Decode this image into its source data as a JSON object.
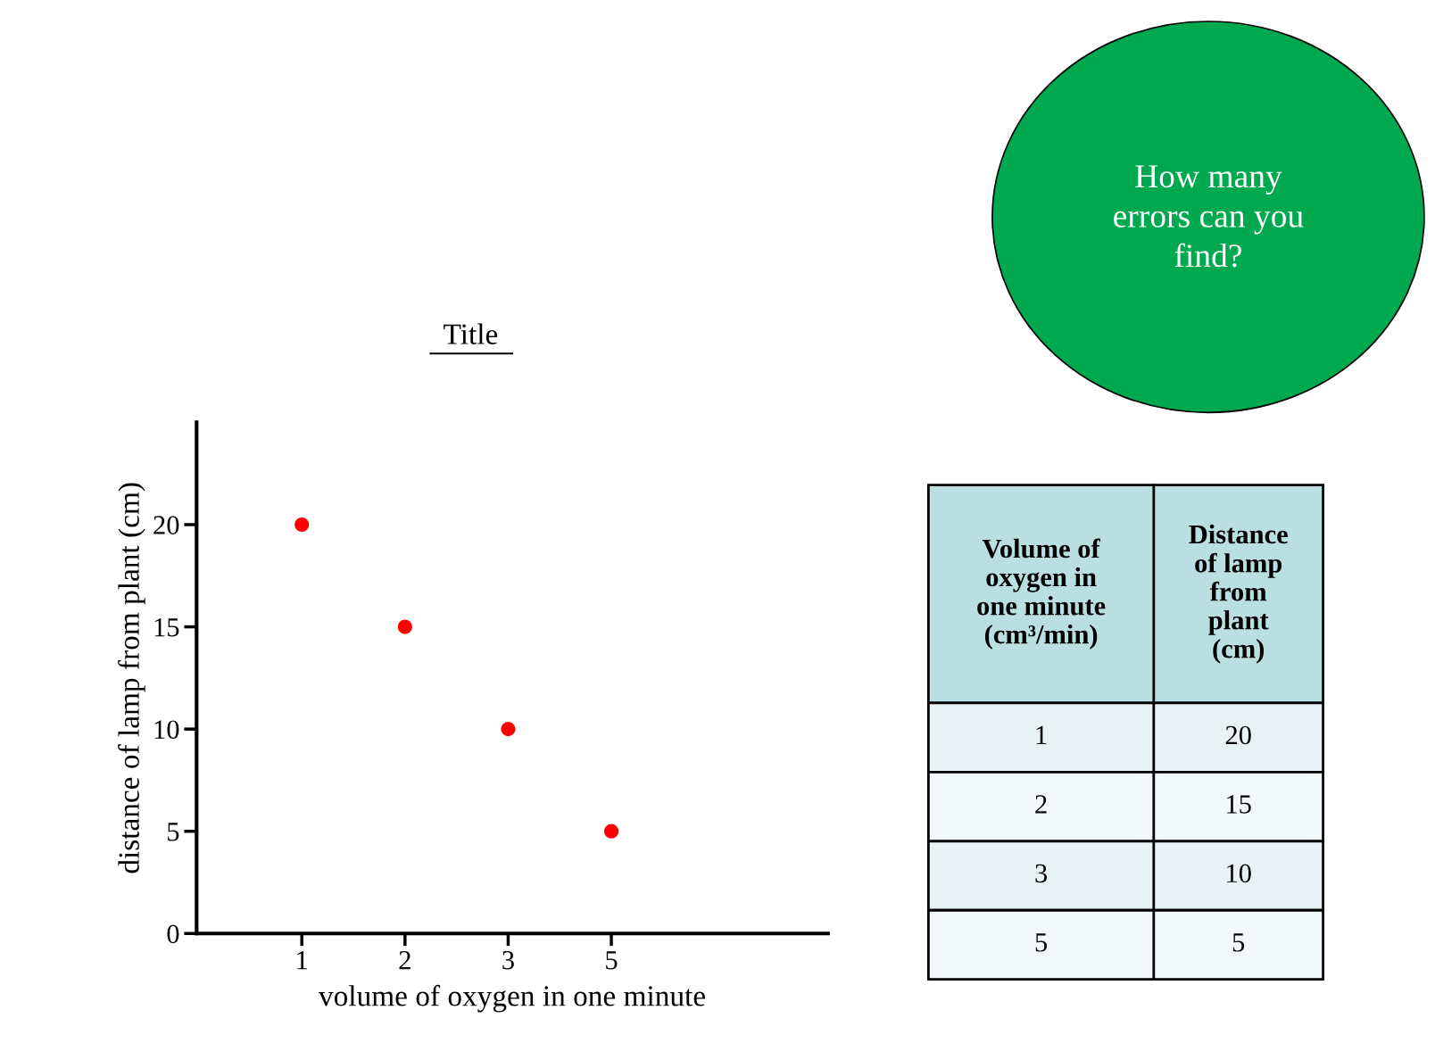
{
  "chart_data": {
    "type": "scatter",
    "title": "Title",
    "xlabel": "volume of oxygen in one minute",
    "ylabel": "distance of lamp from plant (cm)",
    "categories": [
      "1",
      "2",
      "3",
      "5"
    ],
    "series": [
      {
        "color": "#ff0000",
        "values": [
          20,
          15,
          10,
          5
        ]
      }
    ],
    "ylim": [
      0,
      25
    ],
    "yticks": [
      0,
      5,
      10,
      15,
      20
    ],
    "marker": "circle",
    "grid": false,
    "annotations": [
      "How many errors can you find?",
      "Volume of oxygen in one minute (cm³/min)",
      "Distance of lamp from plant (cm)",
      "1",
      "20",
      "2",
      "15",
      "3",
      "10",
      "5",
      "5"
    ]
  }
}
